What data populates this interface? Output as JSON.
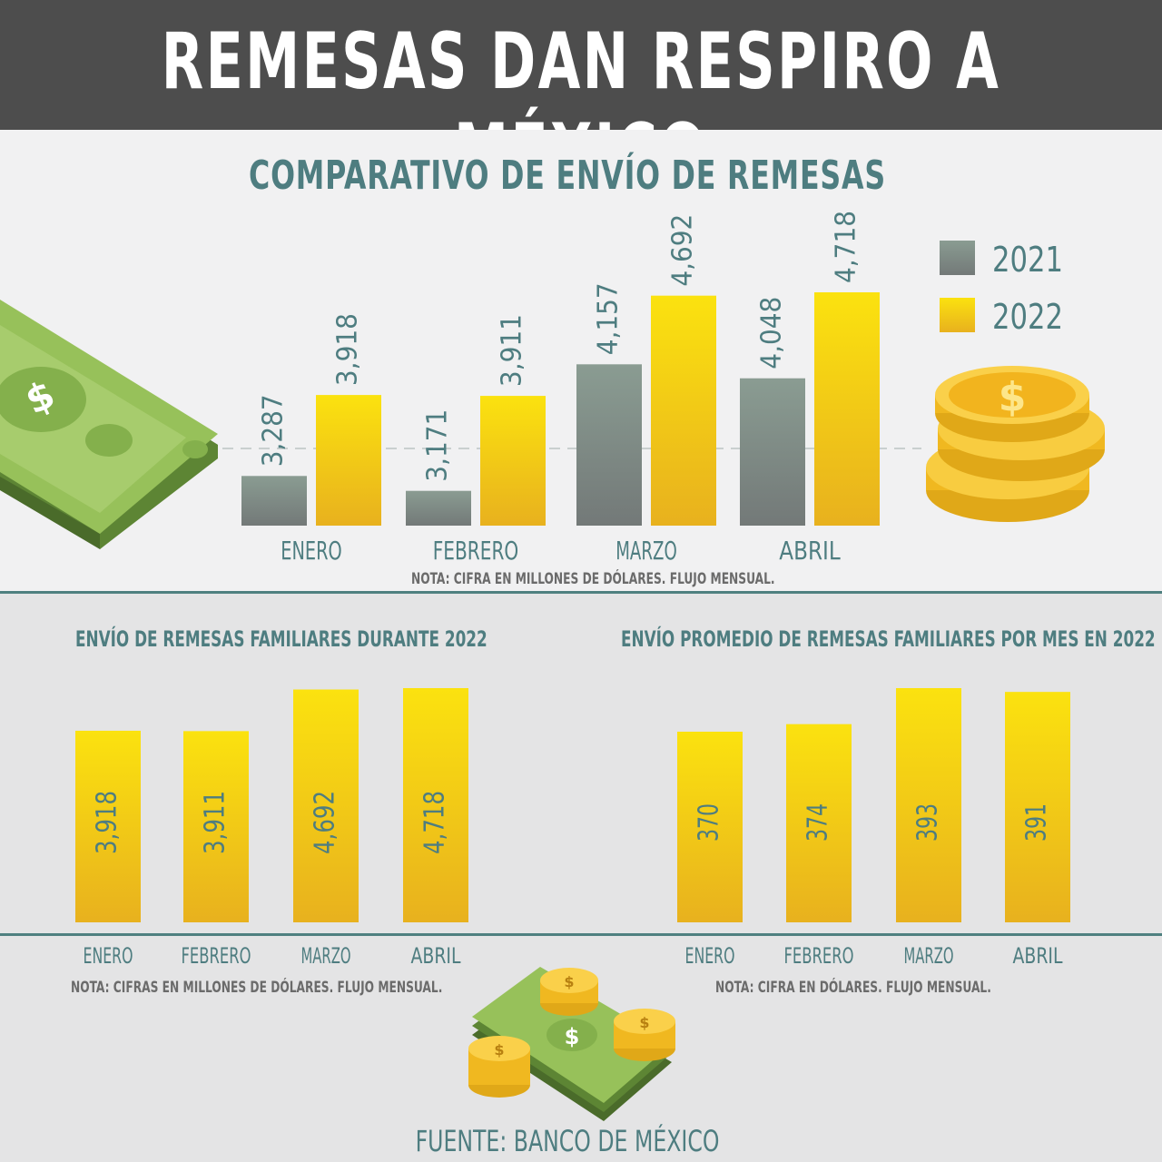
{
  "title": "REMESAS DAN RESPIRO A MÉXICO",
  "colors": {
    "gray": "#8a9a90",
    "yellow": "#f4cd14",
    "teal": "#4e7d80",
    "header": "#4d4d4d"
  },
  "comparativo": {
    "title": "COMPARATIVO DE ENVÍO DE REMESAS",
    "note": "NOTA: CIFRA EN MILLONES DE DÓLARES. FLUJO MENSUAL."
  },
  "familiares": {
    "title": "ENVÍO DE REMESAS FAMILIARES DURANTE 2022",
    "note": "NOTA: CIFRAS EN MILLONES DE DÓLARES. FLUJO MENSUAL."
  },
  "promedio": {
    "title": "ENVÍO PROMEDIO DE REMESAS FAMILIARES POR MES EN 2022",
    "note": "NOTA: CIFRA EN DÓLARES. FLUJO MENSUAL."
  },
  "source": "FUENTE: BANCO DE MÉXICO",
  "icons": [
    "dollar-bill-icon",
    "coin-stack-icon",
    "money-pile-icon"
  ],
  "chart_data": [
    {
      "type": "bar",
      "title": "COMPARATIVO DE ENVÍO DE REMESAS",
      "categories": [
        "ENERO",
        "FEBRERO",
        "MARZO",
        "ABRIL"
      ],
      "series": [
        {
          "name": "2021",
          "values": [
            3287,
            3171,
            4157,
            4048
          ],
          "labels": [
            "3,287",
            "3,171",
            "4,157",
            "4,048"
          ]
        },
        {
          "name": "2022",
          "values": [
            3918,
            3911,
            4692,
            4718
          ],
          "labels": [
            "3,918",
            "3,911",
            "4,692",
            "4,718"
          ]
        }
      ],
      "legend": "right"
    },
    {
      "type": "bar",
      "title": "ENVÍO DE REMESAS FAMILIARES DURANTE 2022",
      "categories": [
        "ENERO",
        "FEBRERO",
        "MARZO",
        "ABRIL"
      ],
      "values": [
        3918,
        3911,
        4692,
        4718
      ],
      "labels": [
        "3,918",
        "3,911",
        "4,692",
        "4,718"
      ]
    },
    {
      "type": "bar",
      "title": "ENVÍO PROMEDIO DE REMESAS FAMILIARES POR MES EN 2022",
      "categories": [
        "ENERO",
        "FEBRERO",
        "MARZO",
        "ABRIL"
      ],
      "values": [
        370,
        374,
        393,
        391
      ],
      "labels": [
        "370",
        "374",
        "393",
        "391"
      ]
    }
  ]
}
